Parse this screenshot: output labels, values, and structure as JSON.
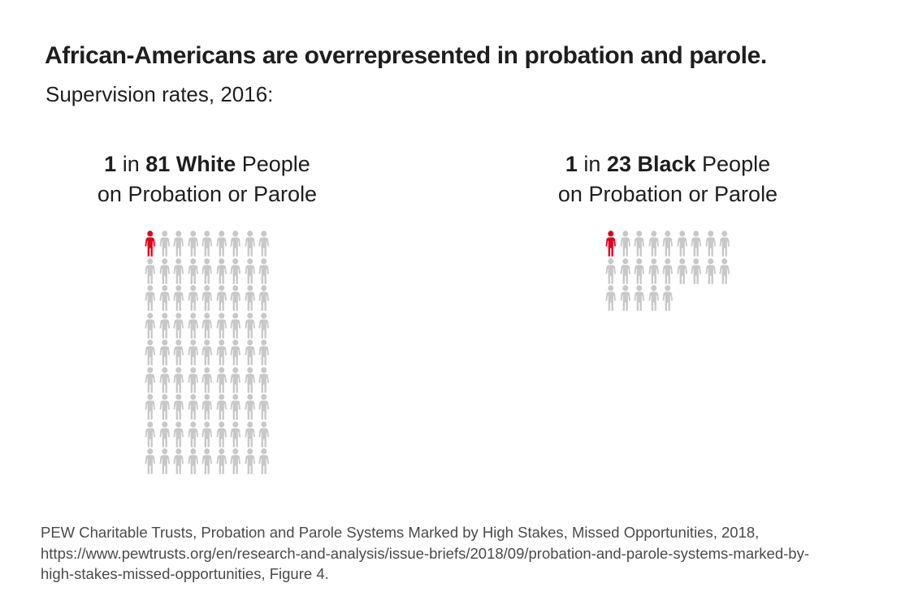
{
  "title": "African-Americans are overrepresented in probation and parole.",
  "subtitle": "Supervision rates, 2016:",
  "colors": {
    "highlight": "#e0041f",
    "icon_gray": "#c8c8c8",
    "text_dark": "#1e1e1e",
    "source_gray": "#4a4a4a"
  },
  "chart_data": [
    {
      "type": "pictogram",
      "group": "White",
      "ratio_text": "1 in 81",
      "total_icons": 81,
      "highlighted_icons": 1,
      "columns": 9,
      "icon": "person-icon",
      "label": {
        "bold1": "1",
        "mid1": " in ",
        "bold2": "81 White",
        "tail": " People",
        "line2": "on Probation or Parole"
      }
    },
    {
      "type": "pictogram",
      "group": "Black",
      "ratio_text": "1 in 23",
      "total_icons": 23,
      "highlighted_icons": 1,
      "columns": 9,
      "icon": "person-icon",
      "label": {
        "bold1": "1",
        "mid1": " in ",
        "bold2": "23 Black",
        "tail": " People",
        "line2": "on Probation or Parole"
      }
    }
  ],
  "source": {
    "lines": [
      "PEW Charitable Trusts, Probation and Parole Systems Marked by High Stakes, Missed Opportunities, 2018,",
      "https://www.pewtrusts.org/en/research-and-analysis/issue-briefs/2018/09/probation-and-parole-systems-marked-by-",
      "high-stakes-missed-opportunities, Figure 4."
    ]
  }
}
